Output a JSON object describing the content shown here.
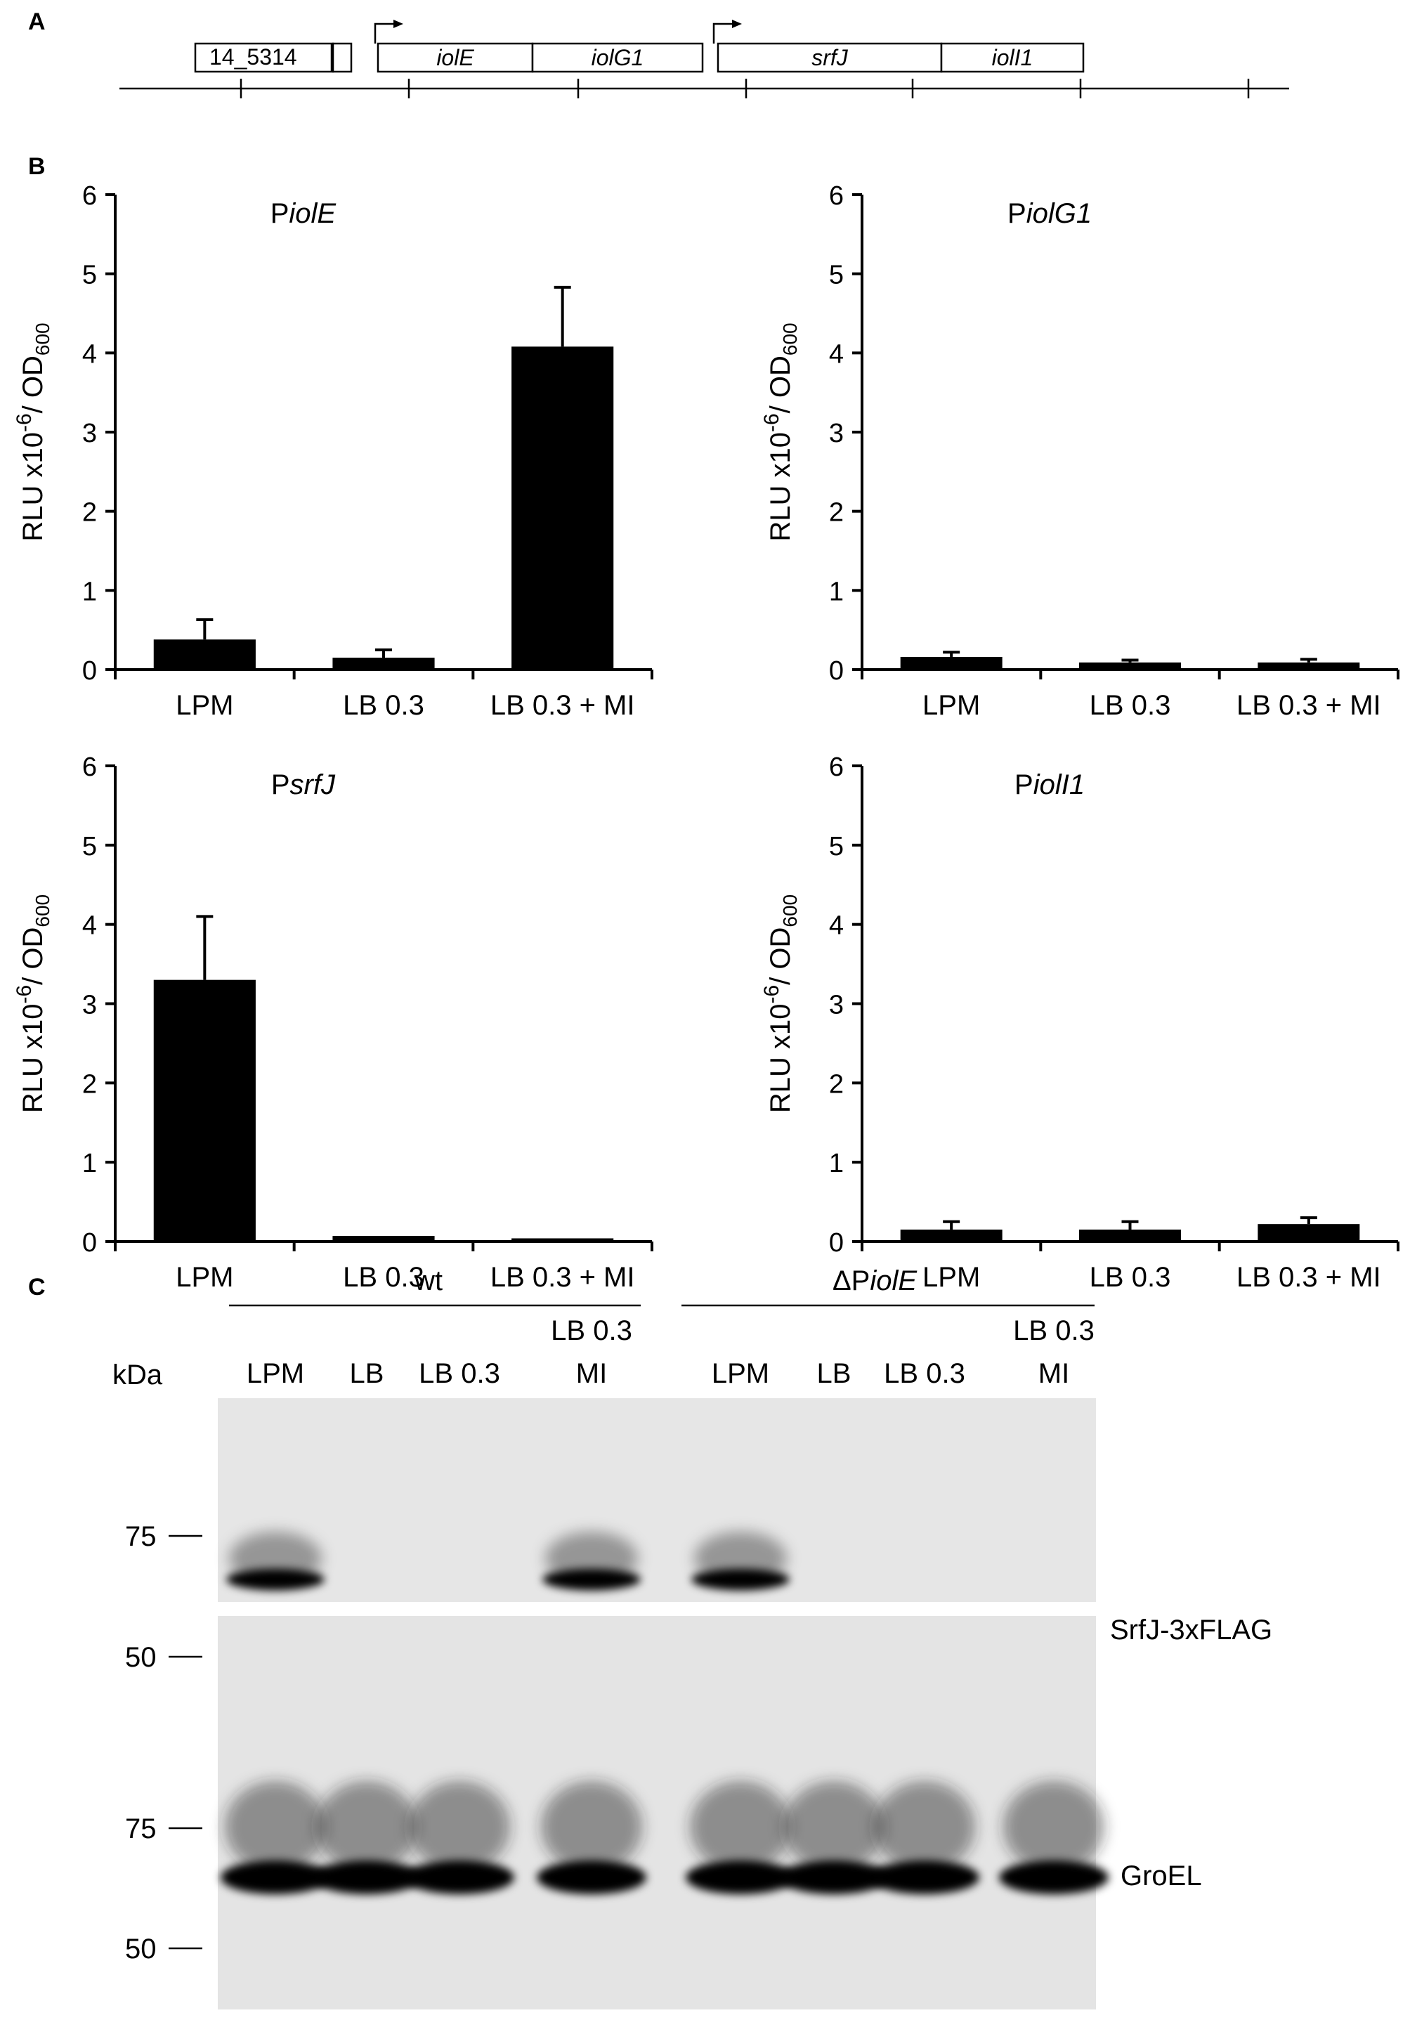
{
  "panels": {
    "a": "A",
    "b": "B",
    "c": "C"
  },
  "gene_map": {
    "genes": [
      {
        "label": "14_5314",
        "italic": false
      },
      {
        "label": "iolE",
        "italic": true
      },
      {
        "label": "iolG1",
        "italic": true
      },
      {
        "label": "srfJ",
        "italic": true
      },
      {
        "label": "iolI1",
        "italic": true
      }
    ]
  },
  "chart_data": [
    {
      "type": "bar",
      "title_prefix": "P",
      "title_gene": "iolE",
      "ylabel_main": "RLU x10",
      "ylabel_exp": "-6",
      "ylabel_mid": "/ OD",
      "ylabel_sub": "600",
      "categories": [
        "LPM",
        "LB 0.3",
        "LB 0.3 + MI"
      ],
      "values": [
        0.38,
        0.15,
        4.08
      ],
      "errors": [
        0.25,
        0.1,
        0.75
      ],
      "ylim": [
        0,
        6
      ],
      "yticks": [
        "0",
        "1",
        "2",
        "3",
        "4",
        "5",
        "6"
      ]
    },
    {
      "type": "bar",
      "title_prefix": "P",
      "title_gene": "iolG1",
      "ylabel_main": "RLU x10",
      "ylabel_exp": "-6",
      "ylabel_mid": "/ OD",
      "ylabel_sub": "600",
      "categories": [
        "LPM",
        "LB 0.3",
        "LB 0.3 + MI"
      ],
      "values": [
        0.16,
        0.09,
        0.09
      ],
      "errors": [
        0.06,
        0.03,
        0.04
      ],
      "ylim": [
        0,
        6
      ],
      "yticks": [
        "0",
        "1",
        "2",
        "3",
        "4",
        "5",
        "6"
      ]
    },
    {
      "type": "bar",
      "title_prefix": "P",
      "title_gene": "srfJ",
      "ylabel_main": "RLU x10",
      "ylabel_exp": "-6",
      "ylabel_mid": "/ OD",
      "ylabel_sub": "600",
      "categories": [
        "LPM",
        "LB 0.3",
        "LB 0.3 + MI"
      ],
      "values": [
        3.3,
        0.07,
        0.04
      ],
      "errors": [
        0.8,
        0.0,
        0.0
      ],
      "ylim": [
        0,
        6
      ],
      "yticks": [
        "0",
        "1",
        "2",
        "3",
        "4",
        "5",
        "6"
      ]
    },
    {
      "type": "bar",
      "title_prefix": "P",
      "title_gene": "iolI1",
      "ylabel_main": "RLU x10",
      "ylabel_exp": "-6",
      "ylabel_mid": "/ OD",
      "ylabel_sub": "600",
      "categories": [
        "LPM",
        "LB 0.3",
        "LB 0.3 + MI"
      ],
      "values": [
        0.15,
        0.15,
        0.22
      ],
      "errors": [
        0.1,
        0.1,
        0.08
      ],
      "ylim": [
        0,
        6
      ],
      "yticks": [
        "0",
        "1",
        "2",
        "3",
        "4",
        "5",
        "6"
      ]
    }
  ],
  "blot": {
    "groups": [
      {
        "label": "wt",
        "prefix": "",
        "italic": ""
      },
      {
        "label": "",
        "prefix": "ΔP",
        "italic": "iolE"
      }
    ],
    "lanes": [
      {
        "line1": "",
        "line2": "LPM"
      },
      {
        "line1": "",
        "line2": "LB"
      },
      {
        "line1": "",
        "line2": "LB 0.3"
      },
      {
        "line1": "LB 0.3",
        "line2": "MI"
      }
    ],
    "kda_label": "kDa",
    "markers_top": [
      "75",
      "50"
    ],
    "markers_bottom": [
      "75",
      "50"
    ],
    "top_band_label": "SrfJ-3xFLAG",
    "bottom_band_label": "GroEL",
    "srfj_band_intensity": [
      0.85,
      0,
      0,
      1.0,
      0.9,
      0,
      0,
      0
    ],
    "groel_band_intensity": [
      1,
      0.9,
      0.9,
      0.95,
      1,
      0.95,
      0.95,
      1
    ]
  }
}
